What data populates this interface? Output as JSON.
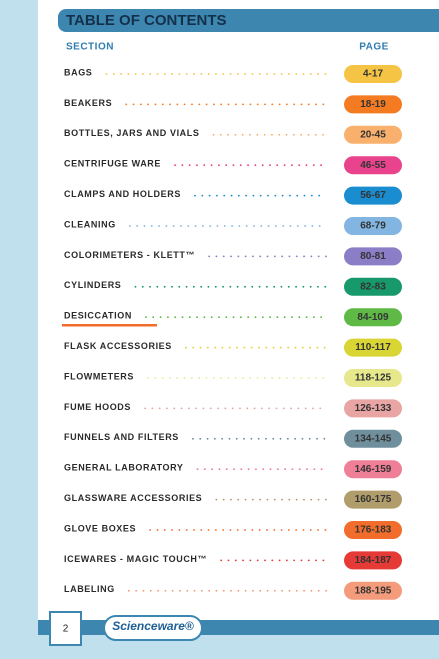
{
  "header": {
    "title": "TABLE OF CONTENTS"
  },
  "columns": {
    "section": "SECTION",
    "page": "PAGE"
  },
  "entries": [
    {
      "section": "BAGS",
      "pages": "4-17",
      "color": "#f6c445"
    },
    {
      "section": "BEAKERS",
      "pages": "18-19",
      "color": "#f47b22"
    },
    {
      "section": "BOTTLES, JARS AND VIALS",
      "pages": "20-45",
      "color": "#f8b06c"
    },
    {
      "section": "CENTRIFUGE WARE",
      "pages": "46-55",
      "color": "#e8438c"
    },
    {
      "section": "CLAMPS AND HOLDERS",
      "pages": "56-67",
      "color": "#1a8dd0"
    },
    {
      "section": "CLEANING",
      "pages": "68-79",
      "color": "#82b5e1"
    },
    {
      "section": "COLORIMETERS - KLETT™",
      "pages": "80-81",
      "color": "#8b7dc6"
    },
    {
      "section": "CYLINDERS",
      "pages": "82-83",
      "color": "#17996b"
    },
    {
      "section": "DESICCATION",
      "pages": "84-109",
      "color": "#5fb947",
      "underlined": true
    },
    {
      "section": "FLASK ACCESSORIES",
      "pages": "110-117",
      "color": "#d9d535"
    },
    {
      "section": "FLOWMETERS",
      "pages": "118-125",
      "color": "#e7e88c"
    },
    {
      "section": "FUME HOODS",
      "pages": "126-133",
      "color": "#e8a5a4"
    },
    {
      "section": "FUNNELS AND FILTERS",
      "pages": "134-145",
      "color": "#6f8f9d"
    },
    {
      "section": "GENERAL LABORATORY",
      "pages": "146-159",
      "color": "#ef7e97"
    },
    {
      "section": "GLASSWARE ACCESSORIES",
      "pages": "160-175",
      "color": "#b19c6b"
    },
    {
      "section": "GLOVE BOXES",
      "pages": "176-183",
      "color": "#f26d2b"
    },
    {
      "section": "ICEWARES - MAGIC TOUCH™",
      "pages": "184-187",
      "color": "#e53a36"
    },
    {
      "section": "LABELING",
      "pages": "188-195",
      "color": "#f39b7b"
    }
  ],
  "footer": {
    "page_number": "2",
    "logo": "Scienceware®"
  }
}
